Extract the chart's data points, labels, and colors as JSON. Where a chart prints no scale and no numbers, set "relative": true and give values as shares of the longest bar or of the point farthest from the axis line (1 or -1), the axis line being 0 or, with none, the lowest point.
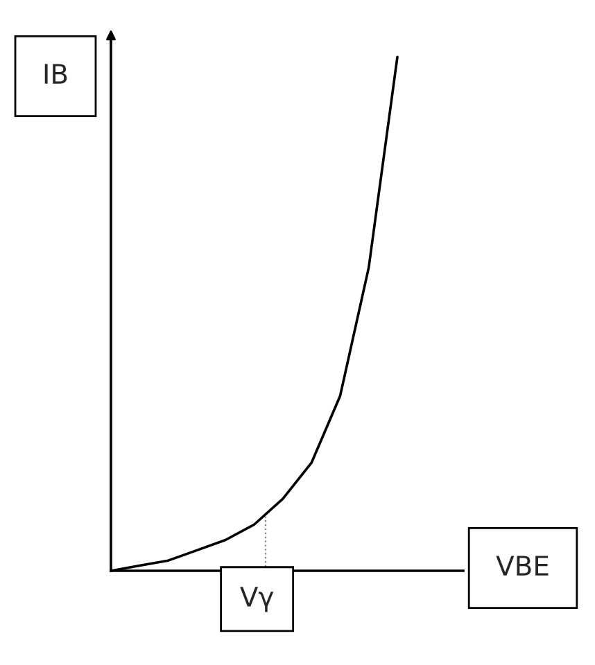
{
  "chart_data": {
    "type": "line",
    "relative": true,
    "xlabel": "VBE",
    "ylabel": "IB",
    "categories": [
      null,
      null,
      null,
      null,
      null,
      null,
      null,
      null,
      null,
      null,
      null,
      null,
      null
    ],
    "series": [
      {
        "color": "#000000",
        "values": [
          0,
          0.01,
          0.02,
          0.04,
          0.06,
          0.09,
          0.14,
          0.21,
          0.34,
          0.59,
          1,
          null,
          null
        ]
      }
    ],
    "annotations": [
      "Vγ"
    ],
    "legend": false,
    "marker": "none",
    "line_style": "solid"
  }
}
